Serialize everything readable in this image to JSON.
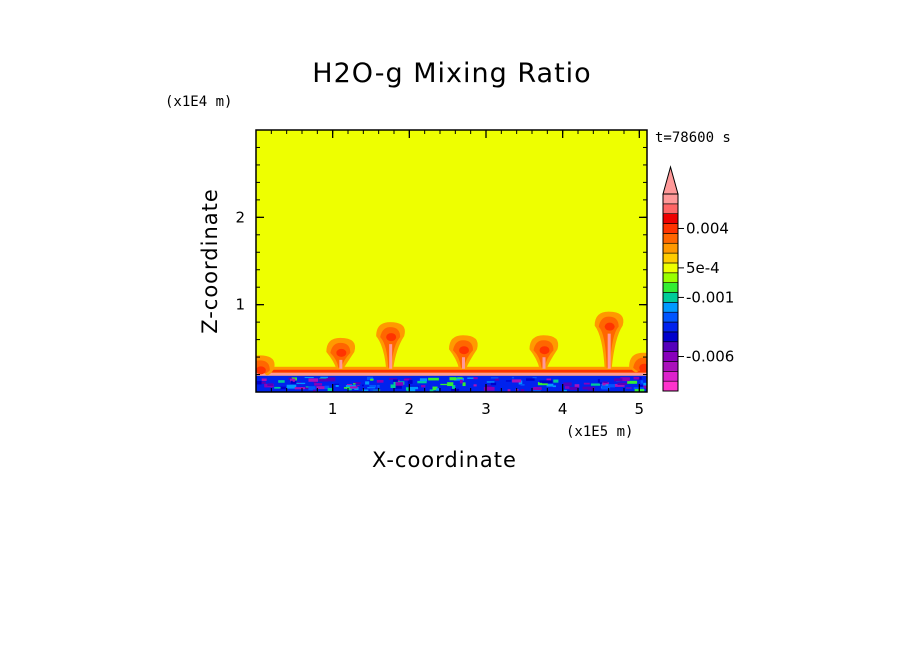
{
  "chart_data": {
    "type": "heatmap",
    "title": "H2O-g Mixing Ratio",
    "xlabel": "X-coordinate",
    "ylabel": "Z-coordinate",
    "x_unit": "(x1E5 m)",
    "y_unit": "(x1E4 m)",
    "time_label": "t=78600 s",
    "xlim": [
      0,
      5.1
    ],
    "ylim": [
      0,
      3.0
    ],
    "x_ticks": [
      1,
      2,
      3,
      4,
      5
    ],
    "y_ticks": [
      1,
      2
    ],
    "background_field_color": "#eeff00",
    "plumes_x": [
      0.05,
      1.1,
      1.75,
      2.7,
      3.75,
      4.6,
      5.05
    ],
    "plume_peak_heights": [
      0.42,
      0.62,
      0.8,
      0.65,
      0.65,
      0.92,
      0.45
    ],
    "surface_layer_top": 0.22,
    "colorbar": {
      "labels": [
        "0.004",
        "5e-4",
        "-0.001",
        "-0.006"
      ],
      "label_values": [
        0.004,
        0.0005,
        -0.001,
        -0.006
      ],
      "levels": [
        -0.009,
        -0.008,
        -0.007,
        -0.006,
        -0.005,
        -0.004,
        -0.003,
        -0.002,
        -0.0015,
        -0.001,
        -0.0005,
        0,
        0.0005,
        0.001,
        0.002,
        0.003,
        0.004,
        0.005,
        0.006,
        0.007
      ],
      "colors": [
        "#ff33cc",
        "#dd22cc",
        "#aa11bb",
        "#8800bb",
        "#5500bb",
        "#0000cc",
        "#0022ee",
        "#0055ff",
        "#0099ff",
        "#00cc99",
        "#33ee33",
        "#99ff00",
        "#eeff00",
        "#ffcc00",
        "#ff9900",
        "#ff6600",
        "#ff3300",
        "#ee0000",
        "#ff6666",
        "#ff9999"
      ],
      "extend": "max"
    }
  }
}
